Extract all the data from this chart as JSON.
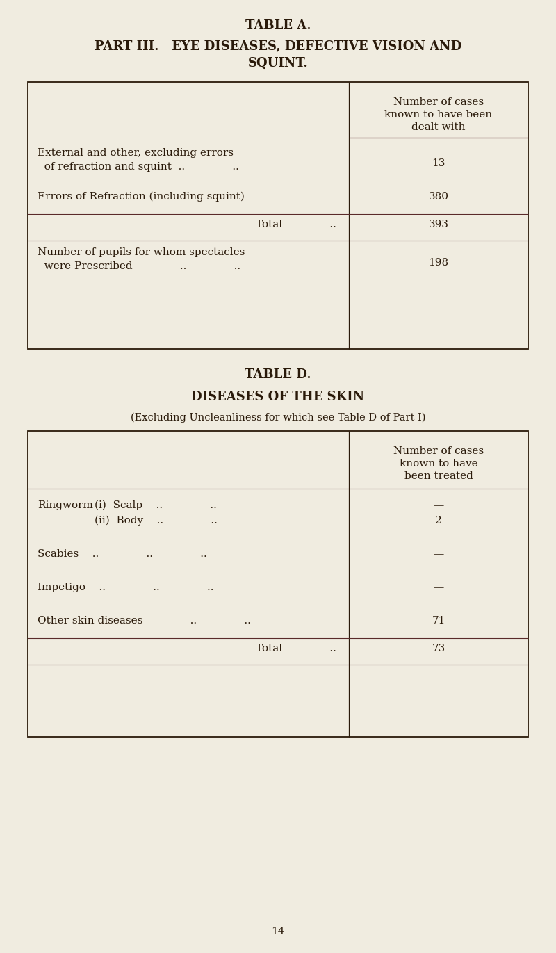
{
  "bg_color": "#f0ece0",
  "text_color": "#2a1a0a",
  "page_title": "TABLE A.",
  "part_line1": "PART III.   EYE DISEASES, DEFECTIVE VISION AND",
  "part_line2": "SQUINT.",
  "table_d_title": "TABLE D.",
  "table_d_subtitle": "DISEASES OF THE SKIN",
  "table_d_note": "(Excluding Uncleanliness for which see Table D of Part I)",
  "page_number": "14",
  "font_family": "serif",
  "line_color": "#5a2a2a"
}
